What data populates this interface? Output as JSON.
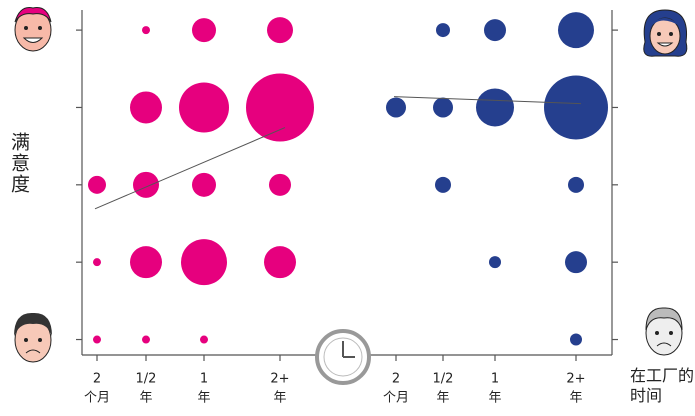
{
  "chart_data": [
    {
      "type": "scatter",
      "color": "#e6007e",
      "ylabel": "满意度",
      "categories": [
        "2",
        "1/2",
        "1",
        "2+"
      ],
      "category_units": [
        "个月",
        "年",
        "年",
        "年"
      ],
      "x": [
        "1/2",
        "1",
        "2+",
        "1/2",
        "1",
        "2+",
        "2",
        "1/2",
        "1",
        "2+",
        "2",
        "1/2",
        "1",
        "2+",
        "2",
        "1/2",
        "1"
      ],
      "y": [
        5,
        5,
        5,
        4,
        4,
        4,
        3,
        3,
        3,
        3,
        2,
        2,
        2,
        2,
        1,
        1,
        1
      ],
      "sizes": [
        4,
        12,
        13,
        16,
        25,
        34,
        9,
        13,
        12,
        11,
        4,
        16,
        23,
        16,
        4,
        4,
        4
      ],
      "trend": [
        2.69,
        3.74
      ],
      "ylim": [
        0.8,
        5.26
      ],
      "yticks": [
        1,
        2,
        3,
        4,
        5
      ]
    },
    {
      "type": "scatter",
      "color": "#253f8e",
      "xlabel": "在工厂的时间",
      "categories": [
        "2",
        "1/2",
        "1",
        "2+"
      ],
      "category_units": [
        "个月",
        "年",
        "年",
        "年"
      ],
      "x": [
        "1/2",
        "1",
        "2+",
        "2",
        "1/2",
        "1",
        "2+",
        "1/2",
        "2+",
        "1",
        "2+",
        "2+"
      ],
      "y": [
        5,
        5,
        5,
        4,
        4,
        4,
        4,
        3,
        3,
        2,
        2,
        1
      ],
      "sizes": [
        7,
        11,
        18,
        10,
        10,
        19,
        32,
        8,
        8,
        6,
        11,
        6
      ],
      "trend": [
        4.14,
        4.05
      ],
      "ylim": [
        0.8,
        5.26
      ],
      "yticks": [
        1,
        2,
        3,
        4,
        5
      ]
    }
  ]
}
